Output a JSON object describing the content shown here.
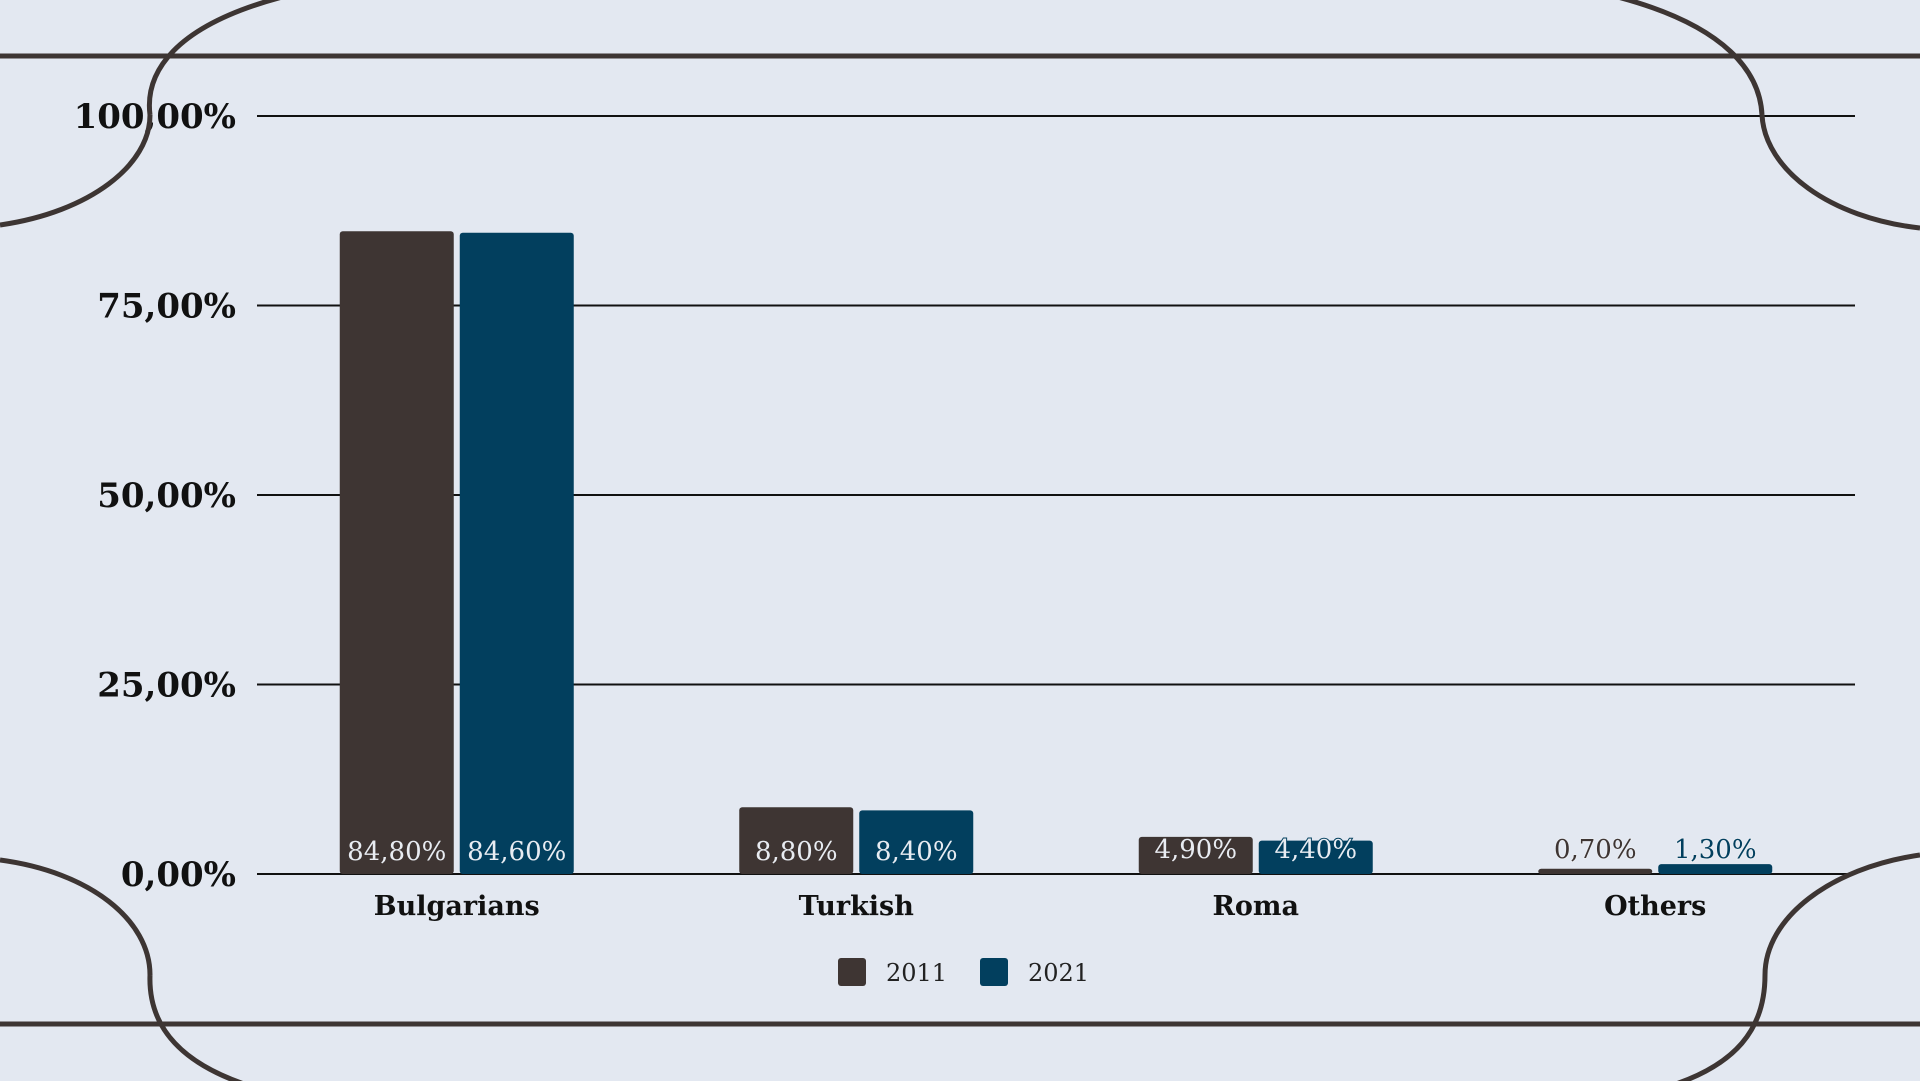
{
  "colors": {
    "background": "#e3e8f1",
    "frame": "#3d3533",
    "grid": "#111111",
    "series_2011": "#3e3533",
    "series_2021": "#023f5e"
  },
  "chart_data": {
    "type": "bar",
    "title": "",
    "xlabel": "",
    "ylabel": "",
    "ylim": [
      0,
      100
    ],
    "y_ticks": [
      {
        "value": 0,
        "label": "0,00%"
      },
      {
        "value": 25,
        "label": "25,00%"
      },
      {
        "value": 50,
        "label": "50,00%"
      },
      {
        "value": 75,
        "label": "75,00%"
      },
      {
        "value": 100,
        "label": "100,00%"
      }
    ],
    "grid": true,
    "legend_position": "bottom",
    "categories": [
      "Bulgarians",
      "Turkish",
      "Roma",
      "Others"
    ],
    "series": [
      {
        "name": "2011",
        "color": "#3e3533",
        "values": [
          84.8,
          8.8,
          4.9,
          0.7
        ],
        "labels": [
          "84,80%",
          "8,80%",
          "4,90%",
          "0,70%"
        ]
      },
      {
        "name": "2021",
        "color": "#023f5e",
        "values": [
          84.6,
          8.4,
          4.4,
          1.3
        ],
        "labels": [
          "84,60%",
          "8,40%",
          "4,40%",
          "1,30%"
        ]
      }
    ]
  }
}
